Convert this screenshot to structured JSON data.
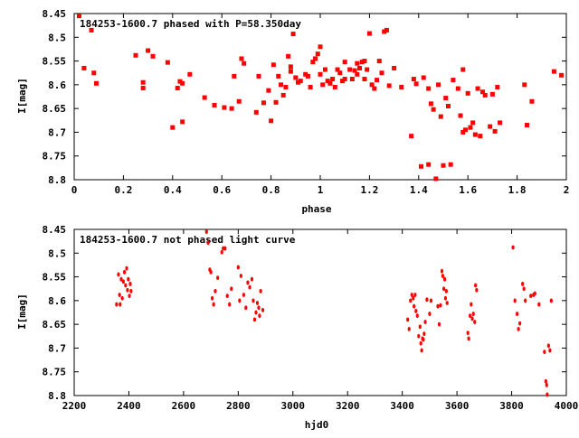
{
  "colors": {
    "points": "#ff0000",
    "frame": "#000000",
    "background": "#ffffff"
  },
  "chart_data": [
    {
      "type": "scatter",
      "title": "184253-1600.7 phased with P=58.350day",
      "xlabel": "phase",
      "ylabel": "I[mag]",
      "xlim": [
        0,
        2
      ],
      "ylim": [
        8.45,
        8.8
      ],
      "y_inverted": true,
      "xticks": [
        "0",
        "0.2",
        "0.4",
        "0.6",
        "0.8",
        "1",
        "1.2",
        "1.4",
        "1.6",
        "1.8",
        "2"
      ],
      "yticks": [
        "8.45",
        "8.5",
        "8.55",
        "8.6",
        "8.65",
        "8.7",
        "8.75",
        "8.8"
      ],
      "grid": false,
      "points": [
        [
          0.02,
          8.455
        ],
        [
          0.04,
          8.565
        ],
        [
          0.07,
          8.485
        ],
        [
          0.08,
          8.575
        ],
        [
          0.09,
          8.597
        ],
        [
          0.25,
          8.538
        ],
        [
          0.28,
          8.595
        ],
        [
          0.28,
          8.607
        ],
        [
          0.3,
          8.528
        ],
        [
          0.32,
          8.54
        ],
        [
          0.38,
          8.553
        ],
        [
          0.4,
          8.69
        ],
        [
          0.42,
          8.607
        ],
        [
          0.43,
          8.593
        ],
        [
          0.44,
          8.678
        ],
        [
          0.44,
          8.597
        ],
        [
          0.47,
          8.578
        ],
        [
          0.53,
          8.627
        ],
        [
          0.57,
          8.643
        ],
        [
          0.61,
          8.648
        ],
        [
          0.64,
          8.65
        ],
        [
          0.65,
          8.582
        ],
        [
          0.67,
          8.635
        ],
        [
          0.68,
          8.545
        ],
        [
          0.69,
          8.555
        ],
        [
          0.74,
          8.658
        ],
        [
          0.75,
          8.582
        ],
        [
          0.77,
          8.638
        ],
        [
          0.79,
          8.612
        ],
        [
          0.8,
          8.676
        ],
        [
          0.81,
          8.558
        ],
        [
          0.82,
          8.637
        ],
        [
          0.83,
          8.582
        ],
        [
          0.84,
          8.6
        ],
        [
          0.85,
          8.622
        ],
        [
          0.86,
          8.605
        ],
        [
          0.87,
          8.54
        ],
        [
          0.88,
          8.562
        ],
        [
          0.88,
          8.572
        ],
        [
          0.89,
          8.493
        ],
        [
          0.9,
          8.585
        ],
        [
          0.91,
          8.595
        ],
        [
          0.92,
          8.592
        ],
        [
          0.94,
          8.578
        ],
        [
          0.95,
          8.582
        ],
        [
          0.96,
          8.605
        ],
        [
          0.97,
          8.552
        ],
        [
          0.98,
          8.545
        ],
        [
          0.99,
          8.535
        ],
        [
          1.0,
          8.52
        ],
        [
          1.0,
          8.578
        ],
        [
          1.01,
          8.6
        ],
        [
          1.02,
          8.568
        ],
        [
          1.03,
          8.592
        ],
        [
          1.04,
          8.597
        ],
        [
          1.05,
          8.588
        ],
        [
          1.06,
          8.605
        ],
        [
          1.07,
          8.568
        ],
        [
          1.08,
          8.575
        ],
        [
          1.09,
          8.592
        ],
        [
          1.1,
          8.588
        ],
        [
          1.1,
          8.552
        ],
        [
          1.12,
          8.568
        ],
        [
          1.13,
          8.588
        ],
        [
          1.14,
          8.57
        ],
        [
          1.15,
          8.555
        ],
        [
          1.15,
          8.578
        ],
        [
          1.16,
          8.565
        ],
        [
          1.17,
          8.552
        ],
        [
          1.18,
          8.55
        ],
        [
          1.18,
          8.588
        ],
        [
          1.19,
          8.568
        ],
        [
          1.2,
          8.492
        ],
        [
          1.21,
          8.6
        ],
        [
          1.22,
          8.608
        ],
        [
          1.23,
          8.59
        ],
        [
          1.24,
          8.55
        ],
        [
          1.25,
          8.575
        ],
        [
          1.26,
          8.488
        ],
        [
          1.27,
          8.485
        ],
        [
          1.28,
          8.602
        ],
        [
          1.3,
          8.565
        ],
        [
          1.33,
          8.605
        ],
        [
          1.37,
          8.708
        ],
        [
          1.38,
          8.588
        ],
        [
          1.39,
          8.598
        ],
        [
          1.41,
          8.772
        ],
        [
          1.42,
          8.585
        ],
        [
          1.44,
          8.608
        ],
        [
          1.44,
          8.768
        ],
        [
          1.45,
          8.64
        ],
        [
          1.46,
          8.652
        ],
        [
          1.47,
          8.798
        ],
        [
          1.48,
          8.6
        ],
        [
          1.49,
          8.667
        ],
        [
          1.5,
          8.77
        ],
        [
          1.51,
          8.628
        ],
        [
          1.52,
          8.645
        ],
        [
          1.53,
          8.768
        ],
        [
          1.54,
          8.59
        ],
        [
          1.56,
          8.608
        ],
        [
          1.57,
          8.665
        ],
        [
          1.58,
          8.568
        ],
        [
          1.58,
          8.7
        ],
        [
          1.59,
          8.695
        ],
        [
          1.6,
          8.618
        ],
        [
          1.61,
          8.69
        ],
        [
          1.62,
          8.68
        ],
        [
          1.63,
          8.705
        ],
        [
          1.64,
          8.608
        ],
        [
          1.65,
          8.708
        ],
        [
          1.66,
          8.615
        ],
        [
          1.67,
          8.622
        ],
        [
          1.69,
          8.688
        ],
        [
          1.7,
          8.62
        ],
        [
          1.71,
          8.698
        ],
        [
          1.72,
          8.605
        ],
        [
          1.73,
          8.68
        ],
        [
          1.83,
          8.6
        ],
        [
          1.84,
          8.685
        ],
        [
          1.86,
          8.635
        ],
        [
          1.95,
          8.572
        ],
        [
          1.98,
          8.58
        ]
      ]
    },
    {
      "type": "scatter",
      "title": "184253-1600.7 not phased light curve",
      "xlabel": "hjd0",
      "ylabel": "I[mag]",
      "xlim": [
        2200,
        4000
      ],
      "ylim": [
        8.45,
        8.8
      ],
      "y_inverted": true,
      "xticks": [
        "2200",
        "2400",
        "2600",
        "2800",
        "3000",
        "3200",
        "3400",
        "3600",
        "3800",
        "4000"
      ],
      "yticks": [
        "8.45",
        "8.5",
        "8.55",
        "8.6",
        "8.65",
        "8.7",
        "8.75",
        "8.8"
      ],
      "grid": false,
      "points": [
        [
          2355,
          8.608
        ],
        [
          2362,
          8.545
        ],
        [
          2366,
          8.588
        ],
        [
          2368,
          8.608
        ],
        [
          2372,
          8.555
        ],
        [
          2376,
          8.595
        ],
        [
          2380,
          8.56
        ],
        [
          2384,
          8.54
        ],
        [
          2388,
          8.568
        ],
        [
          2392,
          8.532
        ],
        [
          2395,
          8.578
        ],
        [
          2398,
          8.555
        ],
        [
          2402,
          8.59
        ],
        [
          2405,
          8.565
        ],
        [
          2408,
          8.58
        ],
        [
          2684,
          8.455
        ],
        [
          2690,
          8.478
        ],
        [
          2696,
          8.535
        ],
        [
          2700,
          8.54
        ],
        [
          2705,
          8.595
        ],
        [
          2710,
          8.608
        ],
        [
          2716,
          8.58
        ],
        [
          2725,
          8.552
        ],
        [
          2740,
          8.498
        ],
        [
          2745,
          8.49
        ],
        [
          2752,
          8.49
        ],
        [
          2760,
          8.59
        ],
        [
          2768,
          8.608
        ],
        [
          2775,
          8.575
        ],
        [
          2800,
          8.53
        ],
        [
          2805,
          8.6
        ],
        [
          2810,
          8.548
        ],
        [
          2820,
          8.588
        ],
        [
          2828,
          8.615
        ],
        [
          2835,
          8.562
        ],
        [
          2842,
          8.572
        ],
        [
          2850,
          8.555
        ],
        [
          2855,
          8.6
        ],
        [
          2860,
          8.64
        ],
        [
          2865,
          8.625
        ],
        [
          2870,
          8.605
        ],
        [
          2875,
          8.615
        ],
        [
          2878,
          8.632
        ],
        [
          2882,
          8.58
        ],
        [
          2890,
          8.62
        ],
        [
          3420,
          8.64
        ],
        [
          3425,
          8.66
        ],
        [
          3430,
          8.6
        ],
        [
          3435,
          8.588
        ],
        [
          3440,
          8.595
        ],
        [
          3443,
          8.612
        ],
        [
          3447,
          8.588
        ],
        [
          3450,
          8.622
        ],
        [
          3455,
          8.632
        ],
        [
          3460,
          8.675
        ],
        [
          3465,
          8.655
        ],
        [
          3468,
          8.69
        ],
        [
          3471,
          8.705
        ],
        [
          3474,
          8.68
        ],
        [
          3477,
          8.682
        ],
        [
          3480,
          8.67
        ],
        [
          3484,
          8.645
        ],
        [
          3490,
          8.598
        ],
        [
          3500,
          8.628
        ],
        [
          3505,
          8.6
        ],
        [
          3530,
          8.612
        ],
        [
          3535,
          8.65
        ],
        [
          3540,
          8.61
        ],
        [
          3545,
          8.538
        ],
        [
          3548,
          8.548
        ],
        [
          3552,
          8.575
        ],
        [
          3555,
          8.555
        ],
        [
          3558,
          8.595
        ],
        [
          3561,
          8.58
        ],
        [
          3564,
          8.605
        ],
        [
          3640,
          8.668
        ],
        [
          3643,
          8.68
        ],
        [
          3648,
          8.632
        ],
        [
          3652,
          8.608
        ],
        [
          3656,
          8.638
        ],
        [
          3660,
          8.628
        ],
        [
          3665,
          8.645
        ],
        [
          3668,
          8.568
        ],
        [
          3672,
          8.578
        ],
        [
          3805,
          8.488
        ],
        [
          3812,
          8.6
        ],
        [
          3820,
          8.628
        ],
        [
          3825,
          8.66
        ],
        [
          3830,
          8.648
        ],
        [
          3840,
          8.565
        ],
        [
          3845,
          8.575
        ],
        [
          3850,
          8.6
        ],
        [
          3870,
          8.59
        ],
        [
          3880,
          8.588
        ],
        [
          3885,
          8.585
        ],
        [
          3900,
          8.608
        ],
        [
          3920,
          8.708
        ],
        [
          3925,
          8.77
        ],
        [
          3928,
          8.778
        ],
        [
          3930,
          8.798
        ],
        [
          3935,
          8.695
        ],
        [
          3940,
          8.705
        ],
        [
          3945,
          8.6
        ]
      ]
    }
  ]
}
